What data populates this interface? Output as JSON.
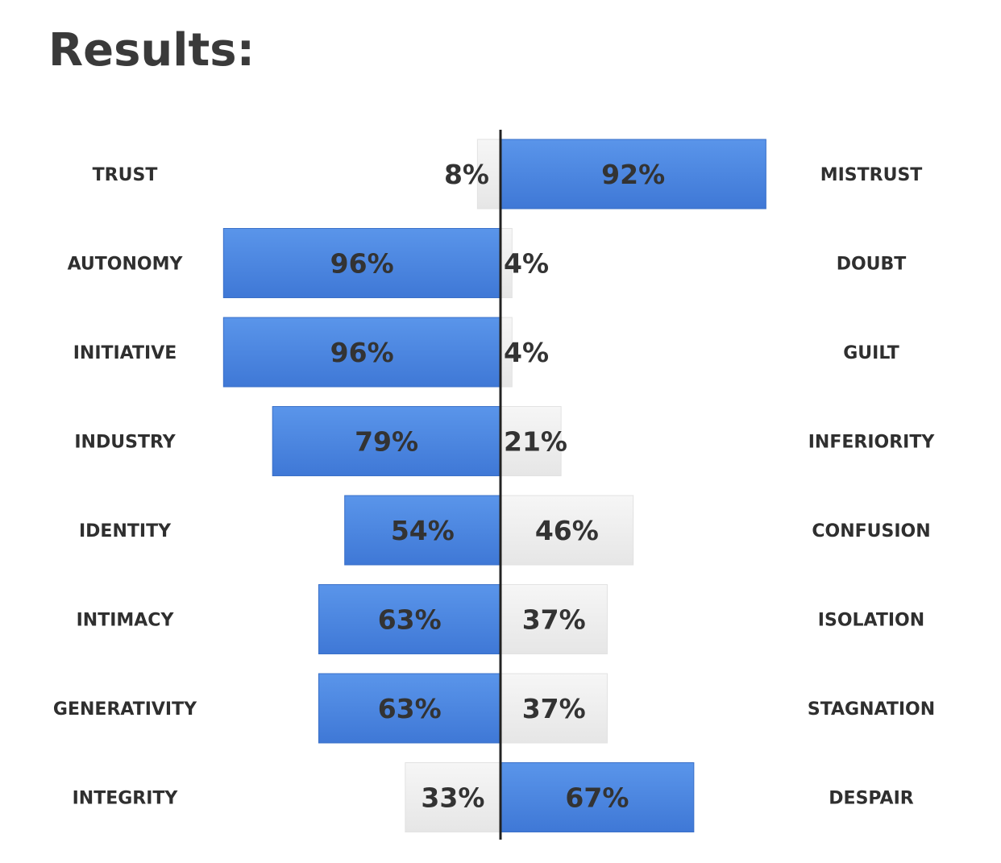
{
  "title": "Results:",
  "chart_data": {
    "type": "bar",
    "orientation": "diverging-horizontal",
    "xlim": [
      0,
      100
    ],
    "grid": false,
    "legend": "none",
    "colors": {
      "highlight": "#4a84dd",
      "neutral": "#ececec",
      "axis": "#222222"
    },
    "rows": [
      {
        "left_label": "TRUST",
        "left_value": 8,
        "left_text": "8%",
        "right_label": "MISTRUST",
        "right_value": 92,
        "right_text": "92%",
        "highlight": "right"
      },
      {
        "left_label": "AUTONOMY",
        "left_value": 96,
        "left_text": "96%",
        "right_label": "DOUBT",
        "right_value": 4,
        "right_text": "4%",
        "highlight": "left"
      },
      {
        "left_label": "INITIATIVE",
        "left_value": 96,
        "left_text": "96%",
        "right_label": "GUILT",
        "right_value": 4,
        "right_text": "4%",
        "highlight": "left"
      },
      {
        "left_label": "INDUSTRY",
        "left_value": 79,
        "left_text": "79%",
        "right_label": "INFERIORITY",
        "right_value": 21,
        "right_text": "21%",
        "highlight": "left"
      },
      {
        "left_label": "IDENTITY",
        "left_value": 54,
        "left_text": "54%",
        "right_label": "CONFUSION",
        "right_value": 46,
        "right_text": "46%",
        "highlight": "left"
      },
      {
        "left_label": "INTIMACY",
        "left_value": 63,
        "left_text": "63%",
        "right_label": "ISOLATION",
        "right_value": 37,
        "right_text": "37%",
        "highlight": "left"
      },
      {
        "left_label": "GENERATIVITY",
        "left_value": 63,
        "left_text": "63%",
        "right_label": "STAGNATION",
        "right_value": 37,
        "right_text": "37%",
        "highlight": "left"
      },
      {
        "left_label": "INTEGRITY",
        "left_value": 33,
        "left_text": "33%",
        "right_label": "DESPAIR",
        "right_value": 67,
        "right_text": "67%",
        "highlight": "right"
      }
    ]
  }
}
